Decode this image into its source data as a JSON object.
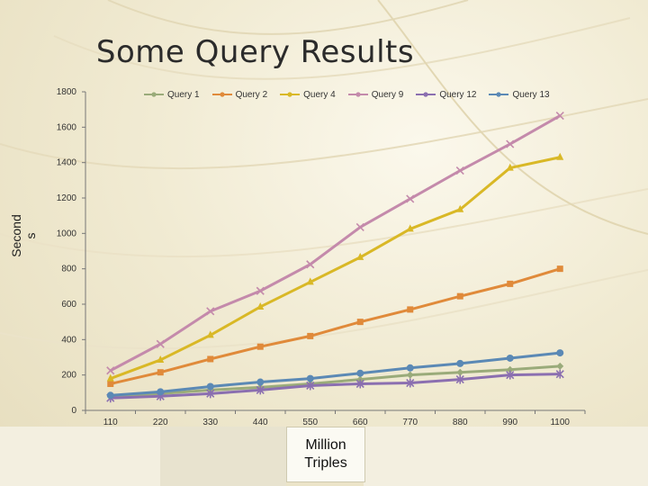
{
  "slide": {
    "title": "Some Query Results"
  },
  "chart_data": {
    "type": "line",
    "title": "",
    "ylabel": "Second s",
    "xlabel": "Million Triples",
    "ylim": [
      0,
      1800
    ],
    "yticks": [
      0,
      200,
      400,
      600,
      800,
      1000,
      1200,
      1400,
      1600,
      1800
    ],
    "categories": [
      "110",
      "220",
      "330",
      "440",
      "550",
      "660",
      "770",
      "880",
      "990",
      "1100"
    ],
    "legend_position": "top",
    "series": [
      {
        "name": "Query 1",
        "color": "#9aab7a",
        "marker": "diamond",
        "values": [
          80,
          95,
          115,
          130,
          150,
          175,
          200,
          215,
          230,
          250
        ]
      },
      {
        "name": "Query 2",
        "color": "#e08a3a",
        "marker": "square",
        "values": [
          150,
          215,
          290,
          360,
          420,
          500,
          570,
          645,
          715,
          800
        ]
      },
      {
        "name": "Query 4",
        "color": "#d9b826",
        "marker": "triangle",
        "values": [
          180,
          285,
          425,
          585,
          725,
          865,
          1025,
          1135,
          1370,
          1430
        ]
      },
      {
        "name": "Query 9",
        "color": "#c48aab",
        "marker": "x",
        "values": [
          225,
          375,
          560,
          675,
          825,
          1035,
          1195,
          1355,
          1505,
          1665
        ]
      },
      {
        "name": "Query 12",
        "color": "#8b6fb0",
        "marker": "star",
        "values": [
          70,
          80,
          95,
          115,
          140,
          150,
          155,
          175,
          200,
          205
        ]
      },
      {
        "name": "Query 13",
        "color": "#5b89b5",
        "marker": "circle",
        "values": [
          85,
          105,
          135,
          160,
          180,
          210,
          240,
          265,
          295,
          325
        ]
      }
    ]
  }
}
